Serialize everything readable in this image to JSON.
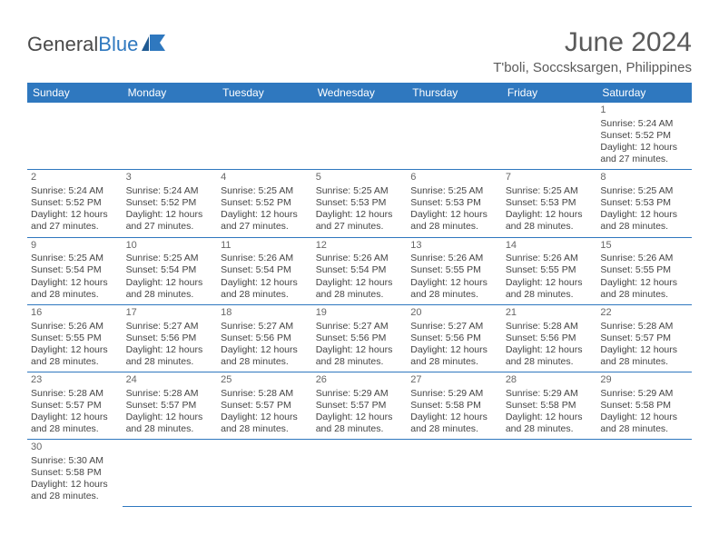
{
  "brand": {
    "word1": "General",
    "word2": "Blue"
  },
  "title": "June 2024",
  "location": "T'boli, Soccsksargen, Philippines",
  "colors": {
    "header_bg": "#2f78bf",
    "header_text": "#ffffff",
    "divider": "#2f78bf",
    "text": "#444444",
    "title_text": "#5a5a5a"
  },
  "weekdays": [
    "Sunday",
    "Monday",
    "Tuesday",
    "Wednesday",
    "Thursday",
    "Friday",
    "Saturday"
  ],
  "weeks": [
    [
      null,
      null,
      null,
      null,
      null,
      null,
      {
        "n": "1",
        "sr": "Sunrise: 5:24 AM",
        "ss": "Sunset: 5:52 PM",
        "d1": "Daylight: 12 hours",
        "d2": "and 27 minutes."
      }
    ],
    [
      {
        "n": "2",
        "sr": "Sunrise: 5:24 AM",
        "ss": "Sunset: 5:52 PM",
        "d1": "Daylight: 12 hours",
        "d2": "and 27 minutes."
      },
      {
        "n": "3",
        "sr": "Sunrise: 5:24 AM",
        "ss": "Sunset: 5:52 PM",
        "d1": "Daylight: 12 hours",
        "d2": "and 27 minutes."
      },
      {
        "n": "4",
        "sr": "Sunrise: 5:25 AM",
        "ss": "Sunset: 5:52 PM",
        "d1": "Daylight: 12 hours",
        "d2": "and 27 minutes."
      },
      {
        "n": "5",
        "sr": "Sunrise: 5:25 AM",
        "ss": "Sunset: 5:53 PM",
        "d1": "Daylight: 12 hours",
        "d2": "and 27 minutes."
      },
      {
        "n": "6",
        "sr": "Sunrise: 5:25 AM",
        "ss": "Sunset: 5:53 PM",
        "d1": "Daylight: 12 hours",
        "d2": "and 28 minutes."
      },
      {
        "n": "7",
        "sr": "Sunrise: 5:25 AM",
        "ss": "Sunset: 5:53 PM",
        "d1": "Daylight: 12 hours",
        "d2": "and 28 minutes."
      },
      {
        "n": "8",
        "sr": "Sunrise: 5:25 AM",
        "ss": "Sunset: 5:53 PM",
        "d1": "Daylight: 12 hours",
        "d2": "and 28 minutes."
      }
    ],
    [
      {
        "n": "9",
        "sr": "Sunrise: 5:25 AM",
        "ss": "Sunset: 5:54 PM",
        "d1": "Daylight: 12 hours",
        "d2": "and 28 minutes."
      },
      {
        "n": "10",
        "sr": "Sunrise: 5:25 AM",
        "ss": "Sunset: 5:54 PM",
        "d1": "Daylight: 12 hours",
        "d2": "and 28 minutes."
      },
      {
        "n": "11",
        "sr": "Sunrise: 5:26 AM",
        "ss": "Sunset: 5:54 PM",
        "d1": "Daylight: 12 hours",
        "d2": "and 28 minutes."
      },
      {
        "n": "12",
        "sr": "Sunrise: 5:26 AM",
        "ss": "Sunset: 5:54 PM",
        "d1": "Daylight: 12 hours",
        "d2": "and 28 minutes."
      },
      {
        "n": "13",
        "sr": "Sunrise: 5:26 AM",
        "ss": "Sunset: 5:55 PM",
        "d1": "Daylight: 12 hours",
        "d2": "and 28 minutes."
      },
      {
        "n": "14",
        "sr": "Sunrise: 5:26 AM",
        "ss": "Sunset: 5:55 PM",
        "d1": "Daylight: 12 hours",
        "d2": "and 28 minutes."
      },
      {
        "n": "15",
        "sr": "Sunrise: 5:26 AM",
        "ss": "Sunset: 5:55 PM",
        "d1": "Daylight: 12 hours",
        "d2": "and 28 minutes."
      }
    ],
    [
      {
        "n": "16",
        "sr": "Sunrise: 5:26 AM",
        "ss": "Sunset: 5:55 PM",
        "d1": "Daylight: 12 hours",
        "d2": "and 28 minutes."
      },
      {
        "n": "17",
        "sr": "Sunrise: 5:27 AM",
        "ss": "Sunset: 5:56 PM",
        "d1": "Daylight: 12 hours",
        "d2": "and 28 minutes."
      },
      {
        "n": "18",
        "sr": "Sunrise: 5:27 AM",
        "ss": "Sunset: 5:56 PM",
        "d1": "Daylight: 12 hours",
        "d2": "and 28 minutes."
      },
      {
        "n": "19",
        "sr": "Sunrise: 5:27 AM",
        "ss": "Sunset: 5:56 PM",
        "d1": "Daylight: 12 hours",
        "d2": "and 28 minutes."
      },
      {
        "n": "20",
        "sr": "Sunrise: 5:27 AM",
        "ss": "Sunset: 5:56 PM",
        "d1": "Daylight: 12 hours",
        "d2": "and 28 minutes."
      },
      {
        "n": "21",
        "sr": "Sunrise: 5:28 AM",
        "ss": "Sunset: 5:56 PM",
        "d1": "Daylight: 12 hours",
        "d2": "and 28 minutes."
      },
      {
        "n": "22",
        "sr": "Sunrise: 5:28 AM",
        "ss": "Sunset: 5:57 PM",
        "d1": "Daylight: 12 hours",
        "d2": "and 28 minutes."
      }
    ],
    [
      {
        "n": "23",
        "sr": "Sunrise: 5:28 AM",
        "ss": "Sunset: 5:57 PM",
        "d1": "Daylight: 12 hours",
        "d2": "and 28 minutes."
      },
      {
        "n": "24",
        "sr": "Sunrise: 5:28 AM",
        "ss": "Sunset: 5:57 PM",
        "d1": "Daylight: 12 hours",
        "d2": "and 28 minutes."
      },
      {
        "n": "25",
        "sr": "Sunrise: 5:28 AM",
        "ss": "Sunset: 5:57 PM",
        "d1": "Daylight: 12 hours",
        "d2": "and 28 minutes."
      },
      {
        "n": "26",
        "sr": "Sunrise: 5:29 AM",
        "ss": "Sunset: 5:57 PM",
        "d1": "Daylight: 12 hours",
        "d2": "and 28 minutes."
      },
      {
        "n": "27",
        "sr": "Sunrise: 5:29 AM",
        "ss": "Sunset: 5:58 PM",
        "d1": "Daylight: 12 hours",
        "d2": "and 28 minutes."
      },
      {
        "n": "28",
        "sr": "Sunrise: 5:29 AM",
        "ss": "Sunset: 5:58 PM",
        "d1": "Daylight: 12 hours",
        "d2": "and 28 minutes."
      },
      {
        "n": "29",
        "sr": "Sunrise: 5:29 AM",
        "ss": "Sunset: 5:58 PM",
        "d1": "Daylight: 12 hours",
        "d2": "and 28 minutes."
      }
    ],
    [
      {
        "n": "30",
        "sr": "Sunrise: 5:30 AM",
        "ss": "Sunset: 5:58 PM",
        "d1": "Daylight: 12 hours",
        "d2": "and 28 minutes."
      },
      null,
      null,
      null,
      null,
      null,
      null
    ]
  ]
}
